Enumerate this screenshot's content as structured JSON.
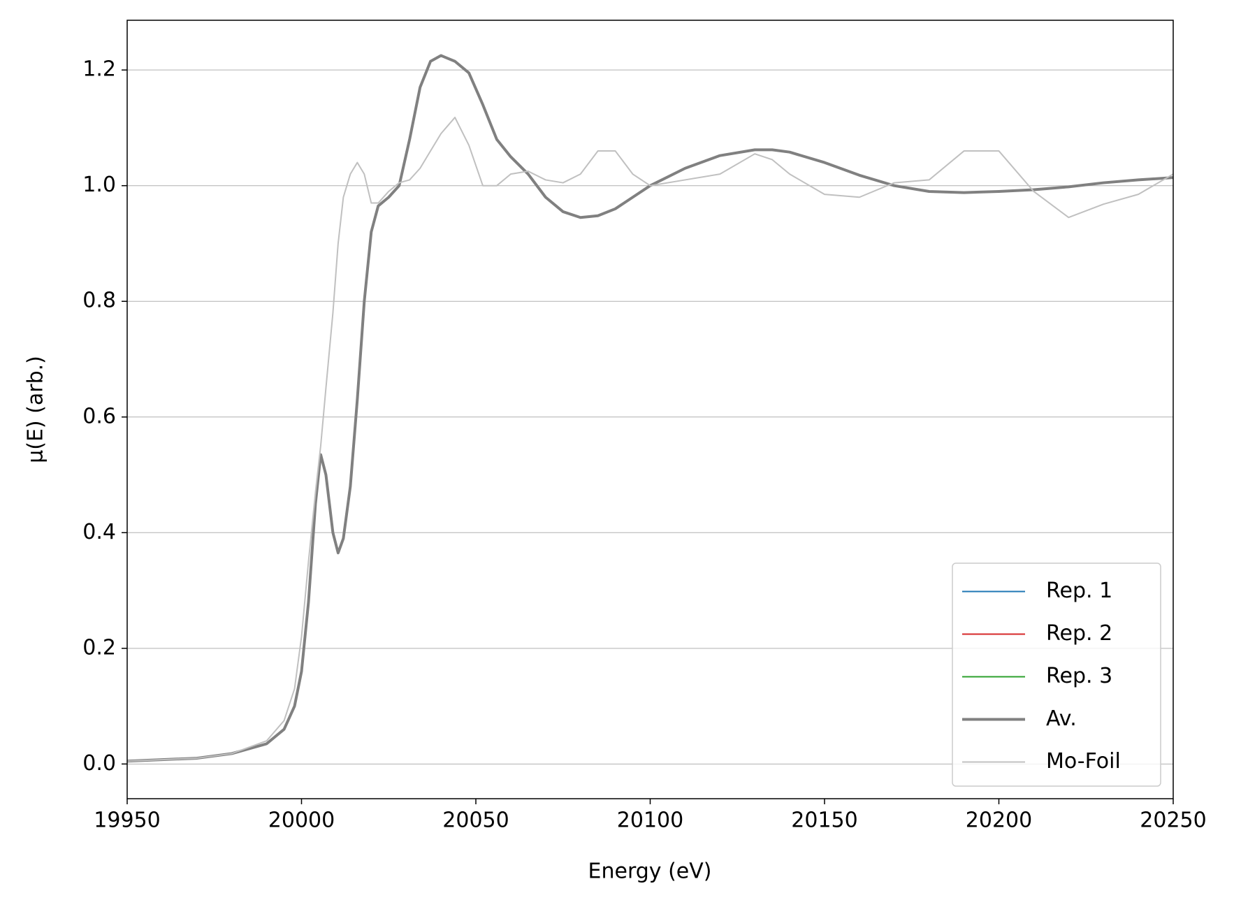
{
  "chart_data": {
    "type": "line",
    "xlabel": "Energy (eV)",
    "ylabel": "μ(E) (arb.)",
    "x": [
      19950,
      19970,
      19980,
      19990,
      19995,
      19998,
      20000,
      20002,
      20004,
      20005.5,
      20007,
      20009,
      20010.5,
      20012,
      20014,
      20016,
      20018,
      20020,
      20022,
      20025,
      20028,
      20031,
      20034,
      20037,
      20040,
      20044,
      20048,
      20052,
      20056,
      20060,
      20065,
      20070,
      20075,
      20080,
      20085,
      20090,
      20095,
      20100,
      20110,
      20120,
      20130,
      20135,
      20140,
      20150,
      20160,
      20170,
      20180,
      20190,
      20200,
      20210,
      20220,
      20230,
      20240,
      20250
    ],
    "series": [
      {
        "name": "Rep. 1",
        "color": "#1f77b4",
        "width": 2,
        "values": [
          0.005,
          0.01,
          0.018,
          0.035,
          0.06,
          0.1,
          0.16,
          0.28,
          0.45,
          0.535,
          0.5,
          0.4,
          0.365,
          0.39,
          0.48,
          0.63,
          0.8,
          0.92,
          0.965,
          0.98,
          1.0,
          1.08,
          1.17,
          1.215,
          1.225,
          1.215,
          1.195,
          1.14,
          1.08,
          1.05,
          1.02,
          0.98,
          0.955,
          0.945,
          0.948,
          0.96,
          0.98,
          1.0,
          1.03,
          1.052,
          1.062,
          1.062,
          1.058,
          1.04,
          1.018,
          1.0,
          0.99,
          0.988,
          0.99,
          0.993,
          0.998,
          1.005,
          1.01,
          1.014
        ]
      },
      {
        "name": "Rep. 2",
        "color": "#d62728",
        "width": 2,
        "values": [
          0.005,
          0.01,
          0.018,
          0.035,
          0.06,
          0.1,
          0.16,
          0.28,
          0.45,
          0.535,
          0.5,
          0.4,
          0.365,
          0.39,
          0.48,
          0.63,
          0.8,
          0.92,
          0.965,
          0.98,
          1.0,
          1.08,
          1.17,
          1.215,
          1.225,
          1.215,
          1.195,
          1.14,
          1.08,
          1.05,
          1.02,
          0.98,
          0.955,
          0.945,
          0.948,
          0.96,
          0.98,
          1.0,
          1.03,
          1.052,
          1.062,
          1.062,
          1.058,
          1.04,
          1.018,
          1.0,
          0.99,
          0.988,
          0.99,
          0.993,
          0.998,
          1.005,
          1.01,
          1.014
        ]
      },
      {
        "name": "Rep. 3",
        "color": "#2ca02c",
        "width": 2,
        "values": [
          0.005,
          0.01,
          0.018,
          0.035,
          0.06,
          0.1,
          0.16,
          0.28,
          0.45,
          0.535,
          0.5,
          0.4,
          0.365,
          0.39,
          0.48,
          0.63,
          0.8,
          0.92,
          0.965,
          0.98,
          1.0,
          1.08,
          1.17,
          1.215,
          1.225,
          1.215,
          1.195,
          1.14,
          1.08,
          1.05,
          1.02,
          0.98,
          0.955,
          0.945,
          0.948,
          0.96,
          0.98,
          1.0,
          1.03,
          1.052,
          1.062,
          1.062,
          1.058,
          1.04,
          1.018,
          1.0,
          0.99,
          0.988,
          0.99,
          0.993,
          0.998,
          1.005,
          1.01,
          1.014
        ]
      },
      {
        "name": "Av.",
        "color": "#808080",
        "width": 4,
        "values": [
          0.005,
          0.01,
          0.018,
          0.035,
          0.06,
          0.1,
          0.16,
          0.28,
          0.45,
          0.535,
          0.5,
          0.4,
          0.365,
          0.39,
          0.48,
          0.63,
          0.8,
          0.92,
          0.965,
          0.98,
          1.0,
          1.08,
          1.17,
          1.215,
          1.225,
          1.215,
          1.195,
          1.14,
          1.08,
          1.05,
          1.02,
          0.98,
          0.955,
          0.945,
          0.948,
          0.96,
          0.98,
          1.0,
          1.03,
          1.052,
          1.062,
          1.062,
          1.058,
          1.04,
          1.018,
          1.0,
          0.99,
          0.988,
          0.99,
          0.993,
          0.998,
          1.005,
          1.01,
          1.014
        ]
      },
      {
        "name": "Mo-Foil",
        "color": "#c0c0c0",
        "width": 2,
        "values": [
          0.005,
          0.01,
          0.018,
          0.04,
          0.075,
          0.13,
          0.22,
          0.35,
          0.47,
          0.55,
          0.65,
          0.78,
          0.9,
          0.98,
          1.02,
          1.04,
          1.02,
          0.97,
          0.97,
          0.99,
          1.005,
          1.01,
          1.03,
          1.06,
          1.09,
          1.118,
          1.07,
          1.0,
          1.0,
          1.02,
          1.025,
          1.01,
          1.005,
          1.02,
          1.06,
          1.06,
          1.02,
          1.0,
          1.01,
          1.02,
          1.055,
          1.045,
          1.02,
          0.985,
          0.98,
          1.005,
          1.01,
          1.06,
          1.06,
          0.99,
          0.945,
          0.968,
          0.985,
          1.02
        ]
      }
    ],
    "xlim": [
      19950,
      20250
    ],
    "xticks": [
      19950,
      20000,
      20050,
      20100,
      20150,
      20200,
      20250
    ],
    "ylim": [
      -0.06,
      1.286
    ],
    "yticks": [
      {
        "value": 0,
        "label": "0.0"
      },
      0.2,
      0.4,
      0.6,
      0.8,
      {
        "value": 1,
        "label": "1.0"
      },
      1.2
    ],
    "grid": "y",
    "legend": "lower right"
  }
}
